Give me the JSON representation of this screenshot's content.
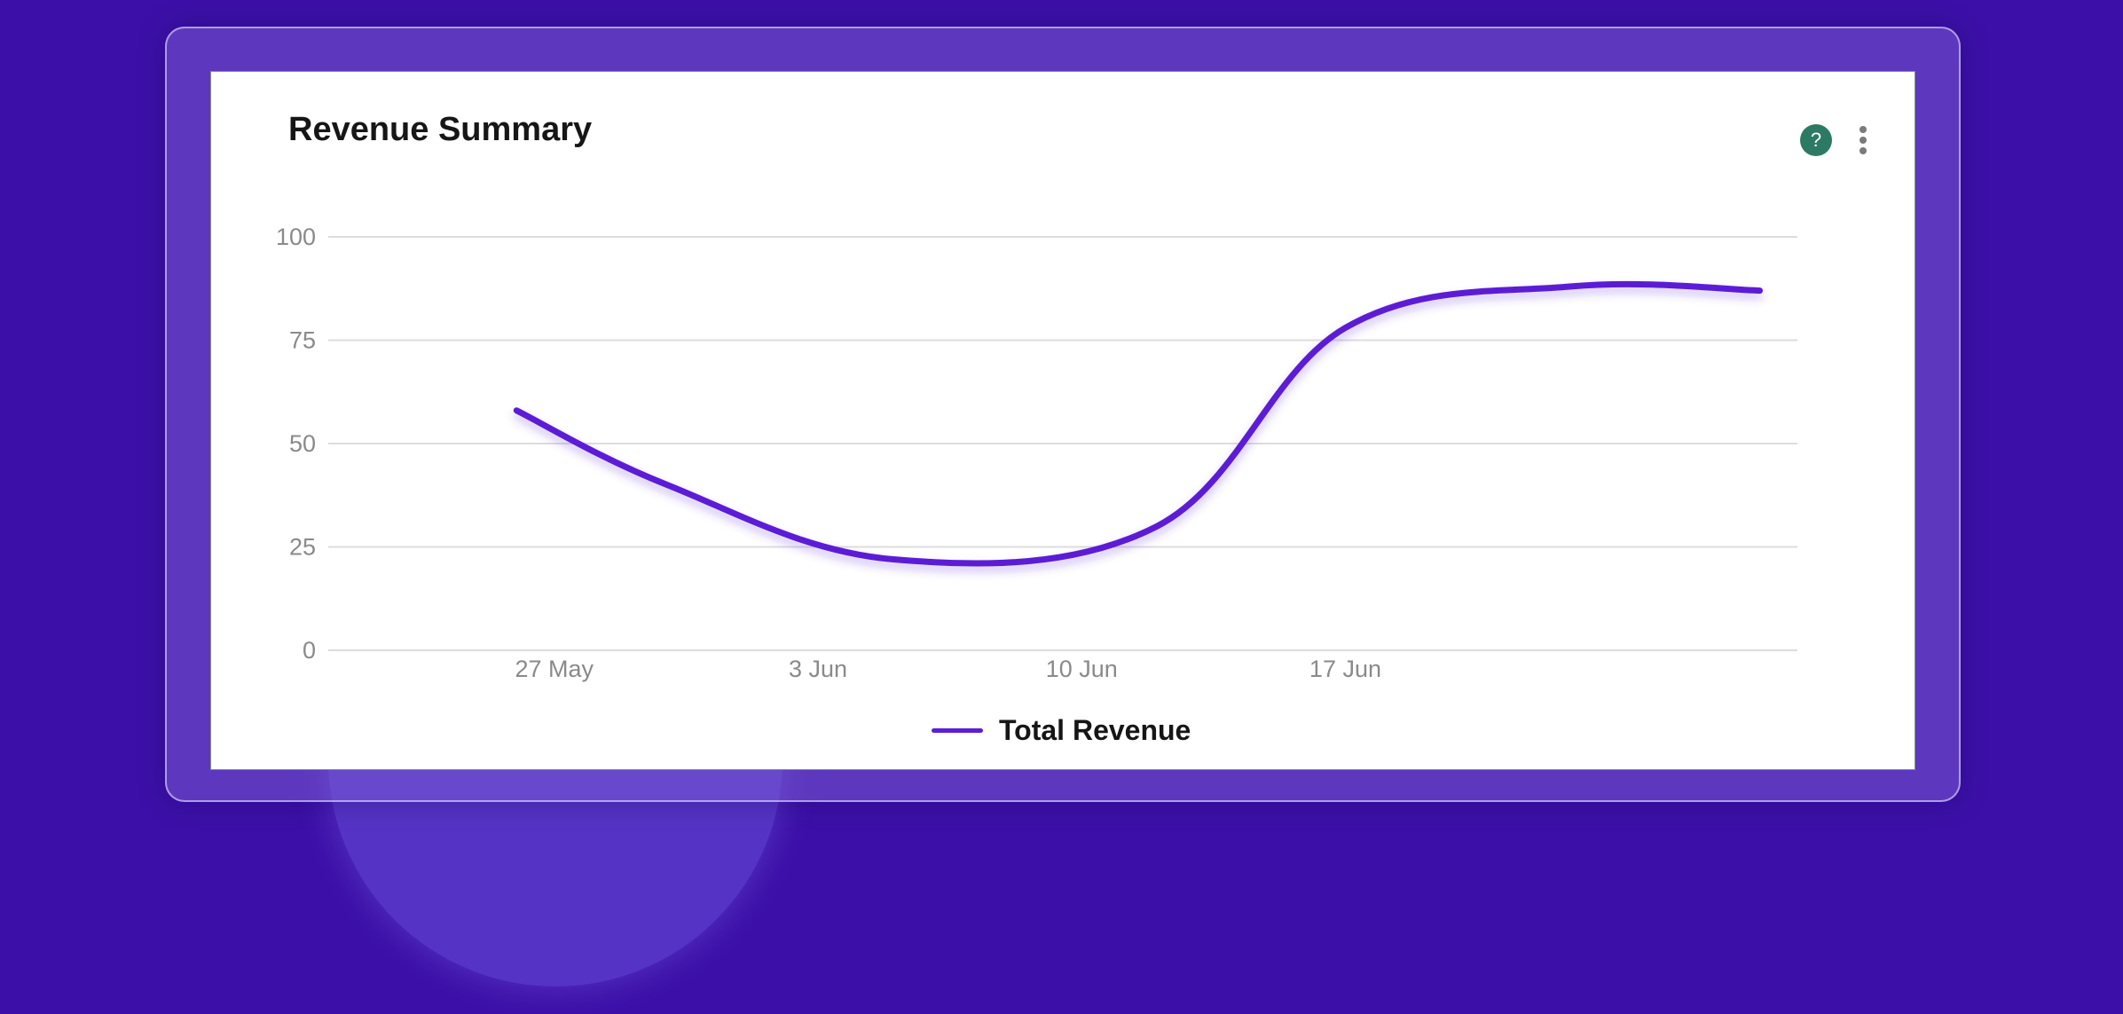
{
  "card": {
    "title": "Revenue Summary",
    "help_label": "?"
  },
  "colors": {
    "line": "#5b1fd6",
    "grid": "#dddddd",
    "help": "#2d7a64"
  },
  "chart_data": {
    "type": "line",
    "title": "Revenue Summary",
    "xlabel": "",
    "ylabel": "",
    "x_tick_labels": [
      "27 May",
      "3 Jun",
      "10 Jun",
      "17 Jun"
    ],
    "y_tick_labels": [
      "0",
      "25",
      "50",
      "75",
      "100"
    ],
    "ylim": [
      0,
      100
    ],
    "xlim": [
      "2024-05-21",
      "2024-06-29"
    ],
    "grid": true,
    "legend": "bottom-center",
    "series": [
      {
        "name": "Total Revenue",
        "x": [
          "2024-05-26",
          "2024-05-30",
          "2024-06-05",
          "2024-06-12",
          "2024-06-17",
          "2024-06-23",
          "2024-06-28"
        ],
        "y": [
          58,
          40,
          22,
          30,
          78,
          88,
          87
        ]
      }
    ]
  }
}
